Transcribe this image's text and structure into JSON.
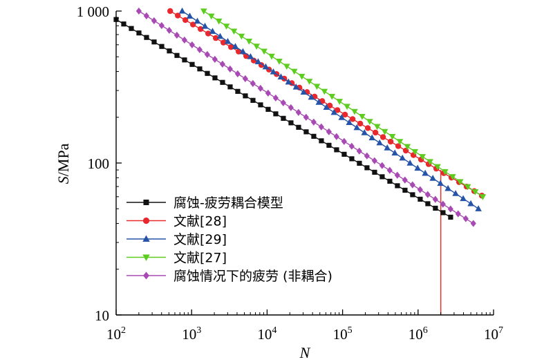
{
  "chart_data": {
    "type": "line",
    "xscale": "log",
    "yscale": "log",
    "xlim": [
      100,
      10000000
    ],
    "ylim": [
      10,
      1000
    ],
    "xlabel": "N",
    "ylabel_italic": "S",
    "ylabel_rest": "/MPa",
    "x_ticks": [
      {
        "base": "10",
        "exp": "2"
      },
      {
        "base": "10",
        "exp": "3"
      },
      {
        "base": "10",
        "exp": "4"
      },
      {
        "base": "10",
        "exp": "5"
      },
      {
        "base": "10",
        "exp": "6"
      },
      {
        "base": "10",
        "exp": "7"
      }
    ],
    "y_ticks": [
      "10",
      "100",
      "1 000"
    ],
    "legend_position": "bottom-left",
    "reference_line": {
      "x": 2000000,
      "color": "#e8332a"
    },
    "series": [
      {
        "name": "腐蚀-疲劳耦合模型",
        "color": "#111111",
        "marker": "square",
        "x_start": 100,
        "x_end": 2700000,
        "y_start": 880,
        "y_end": 44
      },
      {
        "name": "文献[28]",
        "color": "#e8282d",
        "marker": "circle",
        "x_start": 520,
        "x_end": 7000000,
        "y_start": 1000,
        "y_end": 61
      },
      {
        "name": "文献[29]",
        "color": "#2453a8",
        "marker": "triangle-up",
        "x_start": 750,
        "x_end": 6300000,
        "y_start": 1000,
        "y_end": 50
      },
      {
        "name": "文献[27]",
        "color": "#5ccc1f",
        "marker": "triangle-down",
        "x_start": 1450,
        "x_end": 7200000,
        "y_start": 1000,
        "y_end": 60
      },
      {
        "name": "腐蚀情况下的疲劳 (非耦合)",
        "color": "#a84ab3",
        "marker": "diamond",
        "x_start": 200,
        "x_end": 5400000,
        "y_start": 1000,
        "y_end": 40
      }
    ]
  }
}
